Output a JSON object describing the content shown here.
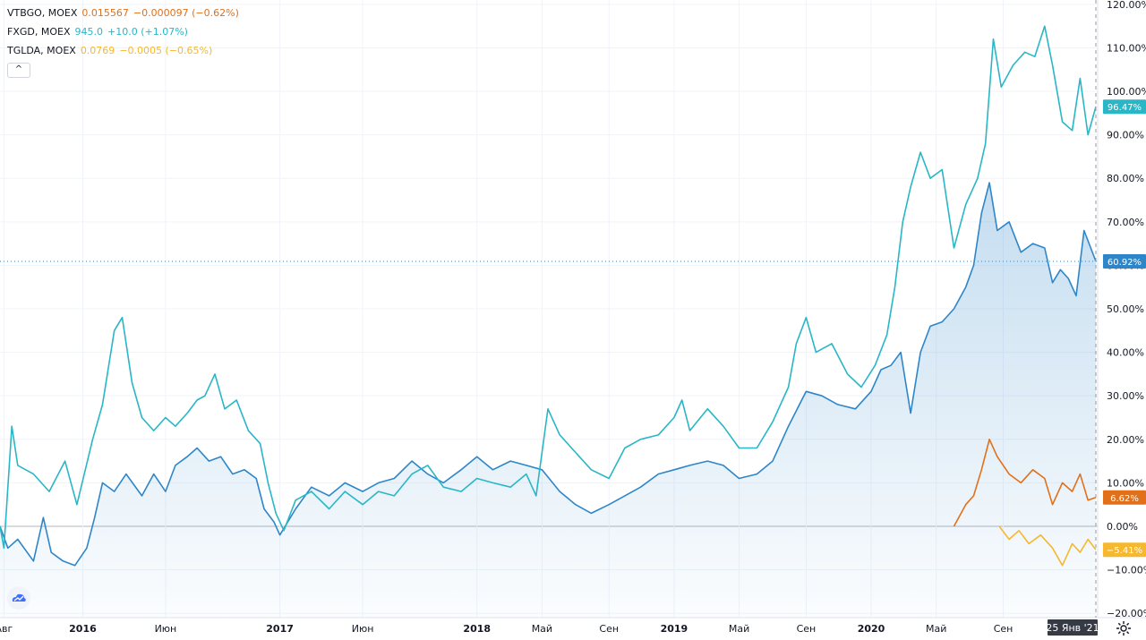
{
  "legend": [
    {
      "symbol": "VTBGO, MOEX",
      "value": "0.015567",
      "change": "−0.000097 (−0.62%)",
      "color": "#e0701a"
    },
    {
      "symbol": "FXGD, MOEX",
      "value": "945.0",
      "change": "+10.0 (+1.07%)",
      "color": "#29b6c6"
    },
    {
      "symbol": "TGLDA, MOEX",
      "value": "0.0769",
      "change": "−0.0005 (−0.65%)",
      "color": "#f5b82e"
    }
  ],
  "collapse_icon": "chevron-up-icon",
  "logo_icon": "tradingview-cloud-icon",
  "settings_icon": "gear-icon",
  "crosshair_date": "25 Янв '21",
  "chart_data": {
    "type": "line",
    "x_axis_labels": [
      "Авг",
      "2016",
      "Июн",
      "2017",
      "Июн",
      "2018",
      "Май",
      "Сен",
      "2019",
      "Май",
      "Сен",
      "2020",
      "Май",
      "Сен"
    ],
    "x_axis_label_bold": [
      false,
      true,
      false,
      true,
      false,
      true,
      false,
      false,
      true,
      false,
      false,
      true,
      false,
      false
    ],
    "y_axis_labels": [
      "120.00%",
      "110.00%",
      "100.00%",
      "90.00%",
      "80.00%",
      "70.00%",
      "60.00%",
      "50.00%",
      "40.00%",
      "30.00%",
      "20.00%",
      "10.00%",
      "0.00%",
      "−10.00%",
      "−20.00%"
    ],
    "y_axis_values": [
      120,
      110,
      100,
      90,
      80,
      70,
      60,
      50,
      40,
      30,
      20,
      10,
      0,
      -10,
      -20
    ],
    "ylim": [
      -21,
      121
    ],
    "x_range": [
      "2015-08",
      "2021-01-25"
    ],
    "baseline": 0,
    "series": [
      {
        "name": "FXGD, MOEX",
        "color": "#29b6c6",
        "last_tag": "96.47%",
        "points": [
          [
            2015.58,
            0
          ],
          [
            2015.6,
            -5
          ],
          [
            2015.64,
            23
          ],
          [
            2015.67,
            14
          ],
          [
            2015.75,
            12
          ],
          [
            2015.83,
            8
          ],
          [
            2015.91,
            15
          ],
          [
            2015.97,
            5
          ],
          [
            2016.05,
            20
          ],
          [
            2016.1,
            28
          ],
          [
            2016.16,
            45
          ],
          [
            2016.2,
            48
          ],
          [
            2016.25,
            33
          ],
          [
            2016.3,
            25
          ],
          [
            2016.36,
            22
          ],
          [
            2016.42,
            25
          ],
          [
            2016.47,
            23
          ],
          [
            2016.53,
            26
          ],
          [
            2016.58,
            29
          ],
          [
            2016.62,
            30
          ],
          [
            2016.67,
            35
          ],
          [
            2016.72,
            27
          ],
          [
            2016.78,
            29
          ],
          [
            2016.84,
            22
          ],
          [
            2016.9,
            19
          ],
          [
            2016.94,
            10
          ],
          [
            2016.98,
            3
          ],
          [
            2017.02,
            -1
          ],
          [
            2017.08,
            6
          ],
          [
            2017.16,
            8
          ],
          [
            2017.25,
            4
          ],
          [
            2017.33,
            8
          ],
          [
            2017.42,
            5
          ],
          [
            2017.5,
            8
          ],
          [
            2017.58,
            7
          ],
          [
            2017.67,
            12
          ],
          [
            2017.75,
            14
          ],
          [
            2017.83,
            9
          ],
          [
            2017.92,
            8
          ],
          [
            2018.0,
            11
          ],
          [
            2018.08,
            10
          ],
          [
            2018.17,
            9
          ],
          [
            2018.25,
            12
          ],
          [
            2018.3,
            7
          ],
          [
            2018.36,
            27
          ],
          [
            2018.42,
            21
          ],
          [
            2018.5,
            17
          ],
          [
            2018.58,
            13
          ],
          [
            2018.67,
            11
          ],
          [
            2018.75,
            18
          ],
          [
            2018.83,
            20
          ],
          [
            2018.92,
            21
          ],
          [
            2019.0,
            25
          ],
          [
            2019.04,
            29
          ],
          [
            2019.08,
            22
          ],
          [
            2019.17,
            27
          ],
          [
            2019.25,
            23
          ],
          [
            2019.33,
            18
          ],
          [
            2019.42,
            18
          ],
          [
            2019.5,
            24
          ],
          [
            2019.58,
            32
          ],
          [
            2019.62,
            42
          ],
          [
            2019.67,
            48
          ],
          [
            2019.72,
            40
          ],
          [
            2019.8,
            42
          ],
          [
            2019.88,
            35
          ],
          [
            2019.95,
            32
          ],
          [
            2020.02,
            37
          ],
          [
            2020.08,
            44
          ],
          [
            2020.12,
            55
          ],
          [
            2020.16,
            70
          ],
          [
            2020.2,
            78
          ],
          [
            2020.25,
            86
          ],
          [
            2020.3,
            80
          ],
          [
            2020.36,
            82
          ],
          [
            2020.42,
            64
          ],
          [
            2020.48,
            74
          ],
          [
            2020.54,
            80
          ],
          [
            2020.58,
            88
          ],
          [
            2020.62,
            112
          ],
          [
            2020.66,
            101
          ],
          [
            2020.72,
            106
          ],
          [
            2020.78,
            109
          ],
          [
            2020.83,
            108
          ],
          [
            2020.88,
            115
          ],
          [
            2020.92,
            106
          ],
          [
            2020.97,
            93
          ],
          [
            2021.02,
            91
          ],
          [
            2021.06,
            103
          ],
          [
            2021.1,
            90
          ],
          [
            2021.14,
            96.47
          ]
        ]
      },
      {
        "name": "",
        "color": "#2e86c9",
        "fill": true,
        "last_tag": "60.92%",
        "points": [
          [
            2015.58,
            0
          ],
          [
            2015.62,
            -5
          ],
          [
            2015.67,
            -3
          ],
          [
            2015.75,
            -8
          ],
          [
            2015.8,
            2
          ],
          [
            2015.84,
            -6
          ],
          [
            2015.9,
            -8
          ],
          [
            2015.96,
            -9
          ],
          [
            2016.02,
            -5
          ],
          [
            2016.06,
            2
          ],
          [
            2016.1,
            10
          ],
          [
            2016.16,
            8
          ],
          [
            2016.22,
            12
          ],
          [
            2016.3,
            7
          ],
          [
            2016.36,
            12
          ],
          [
            2016.42,
            8
          ],
          [
            2016.47,
            14
          ],
          [
            2016.53,
            16
          ],
          [
            2016.58,
            18
          ],
          [
            2016.64,
            15
          ],
          [
            2016.7,
            16
          ],
          [
            2016.76,
            12
          ],
          [
            2016.82,
            13
          ],
          [
            2016.88,
            11
          ],
          [
            2016.92,
            4
          ],
          [
            2016.97,
            1
          ],
          [
            2017.0,
            -2
          ],
          [
            2017.08,
            4
          ],
          [
            2017.16,
            9
          ],
          [
            2017.25,
            7
          ],
          [
            2017.33,
            10
          ],
          [
            2017.42,
            8
          ],
          [
            2017.5,
            10
          ],
          [
            2017.58,
            11
          ],
          [
            2017.67,
            15
          ],
          [
            2017.75,
            12
          ],
          [
            2017.83,
            10
          ],
          [
            2017.92,
            13
          ],
          [
            2018.0,
            16
          ],
          [
            2018.08,
            13
          ],
          [
            2018.17,
            15
          ],
          [
            2018.25,
            14
          ],
          [
            2018.33,
            13
          ],
          [
            2018.42,
            8
          ],
          [
            2018.5,
            5
          ],
          [
            2018.58,
            3
          ],
          [
            2018.67,
            5
          ],
          [
            2018.75,
            7
          ],
          [
            2018.83,
            9
          ],
          [
            2018.92,
            12
          ],
          [
            2019.0,
            13
          ],
          [
            2019.08,
            14
          ],
          [
            2019.17,
            15
          ],
          [
            2019.25,
            14
          ],
          [
            2019.33,
            11
          ],
          [
            2019.42,
            12
          ],
          [
            2019.5,
            15
          ],
          [
            2019.58,
            23
          ],
          [
            2019.67,
            31
          ],
          [
            2019.75,
            30
          ],
          [
            2019.83,
            28
          ],
          [
            2019.92,
            27
          ],
          [
            2020.0,
            31
          ],
          [
            2020.05,
            36
          ],
          [
            2020.1,
            37
          ],
          [
            2020.15,
            40
          ],
          [
            2020.2,
            26
          ],
          [
            2020.25,
            40
          ],
          [
            2020.3,
            46
          ],
          [
            2020.36,
            47
          ],
          [
            2020.42,
            50
          ],
          [
            2020.48,
            55
          ],
          [
            2020.52,
            60
          ],
          [
            2020.56,
            72
          ],
          [
            2020.6,
            79
          ],
          [
            2020.64,
            68
          ],
          [
            2020.7,
            70
          ],
          [
            2020.76,
            63
          ],
          [
            2020.82,
            65
          ],
          [
            2020.88,
            64
          ],
          [
            2020.92,
            56
          ],
          [
            2020.96,
            59
          ],
          [
            2021.0,
            57
          ],
          [
            2021.04,
            53
          ],
          [
            2021.08,
            68
          ],
          [
            2021.14,
            60.92
          ]
        ]
      },
      {
        "name": "VTBGO, MOEX",
        "color": "#e0701a",
        "last_tag": "6.62%",
        "points": [
          [
            2020.42,
            0
          ],
          [
            2020.48,
            5
          ],
          [
            2020.52,
            7
          ],
          [
            2020.56,
            13
          ],
          [
            2020.6,
            20
          ],
          [
            2020.64,
            16
          ],
          [
            2020.7,
            12
          ],
          [
            2020.76,
            10
          ],
          [
            2020.82,
            13
          ],
          [
            2020.88,
            11
          ],
          [
            2020.92,
            5
          ],
          [
            2020.97,
            10
          ],
          [
            2021.02,
            8
          ],
          [
            2021.06,
            12
          ],
          [
            2021.1,
            6
          ],
          [
            2021.14,
            6.62
          ]
        ]
      },
      {
        "name": "TGLDA, MOEX",
        "color": "#f5b82e",
        "last_tag": "−5.41%",
        "points": [
          [
            2020.65,
            0
          ],
          [
            2020.7,
            -3
          ],
          [
            2020.75,
            -1
          ],
          [
            2020.8,
            -4
          ],
          [
            2020.86,
            -2
          ],
          [
            2020.92,
            -5
          ],
          [
            2020.97,
            -9
          ],
          [
            2021.02,
            -4
          ],
          [
            2021.06,
            -6
          ],
          [
            2021.1,
            -3
          ],
          [
            2021.14,
            -5.41
          ]
        ]
      }
    ],
    "grid": true
  }
}
